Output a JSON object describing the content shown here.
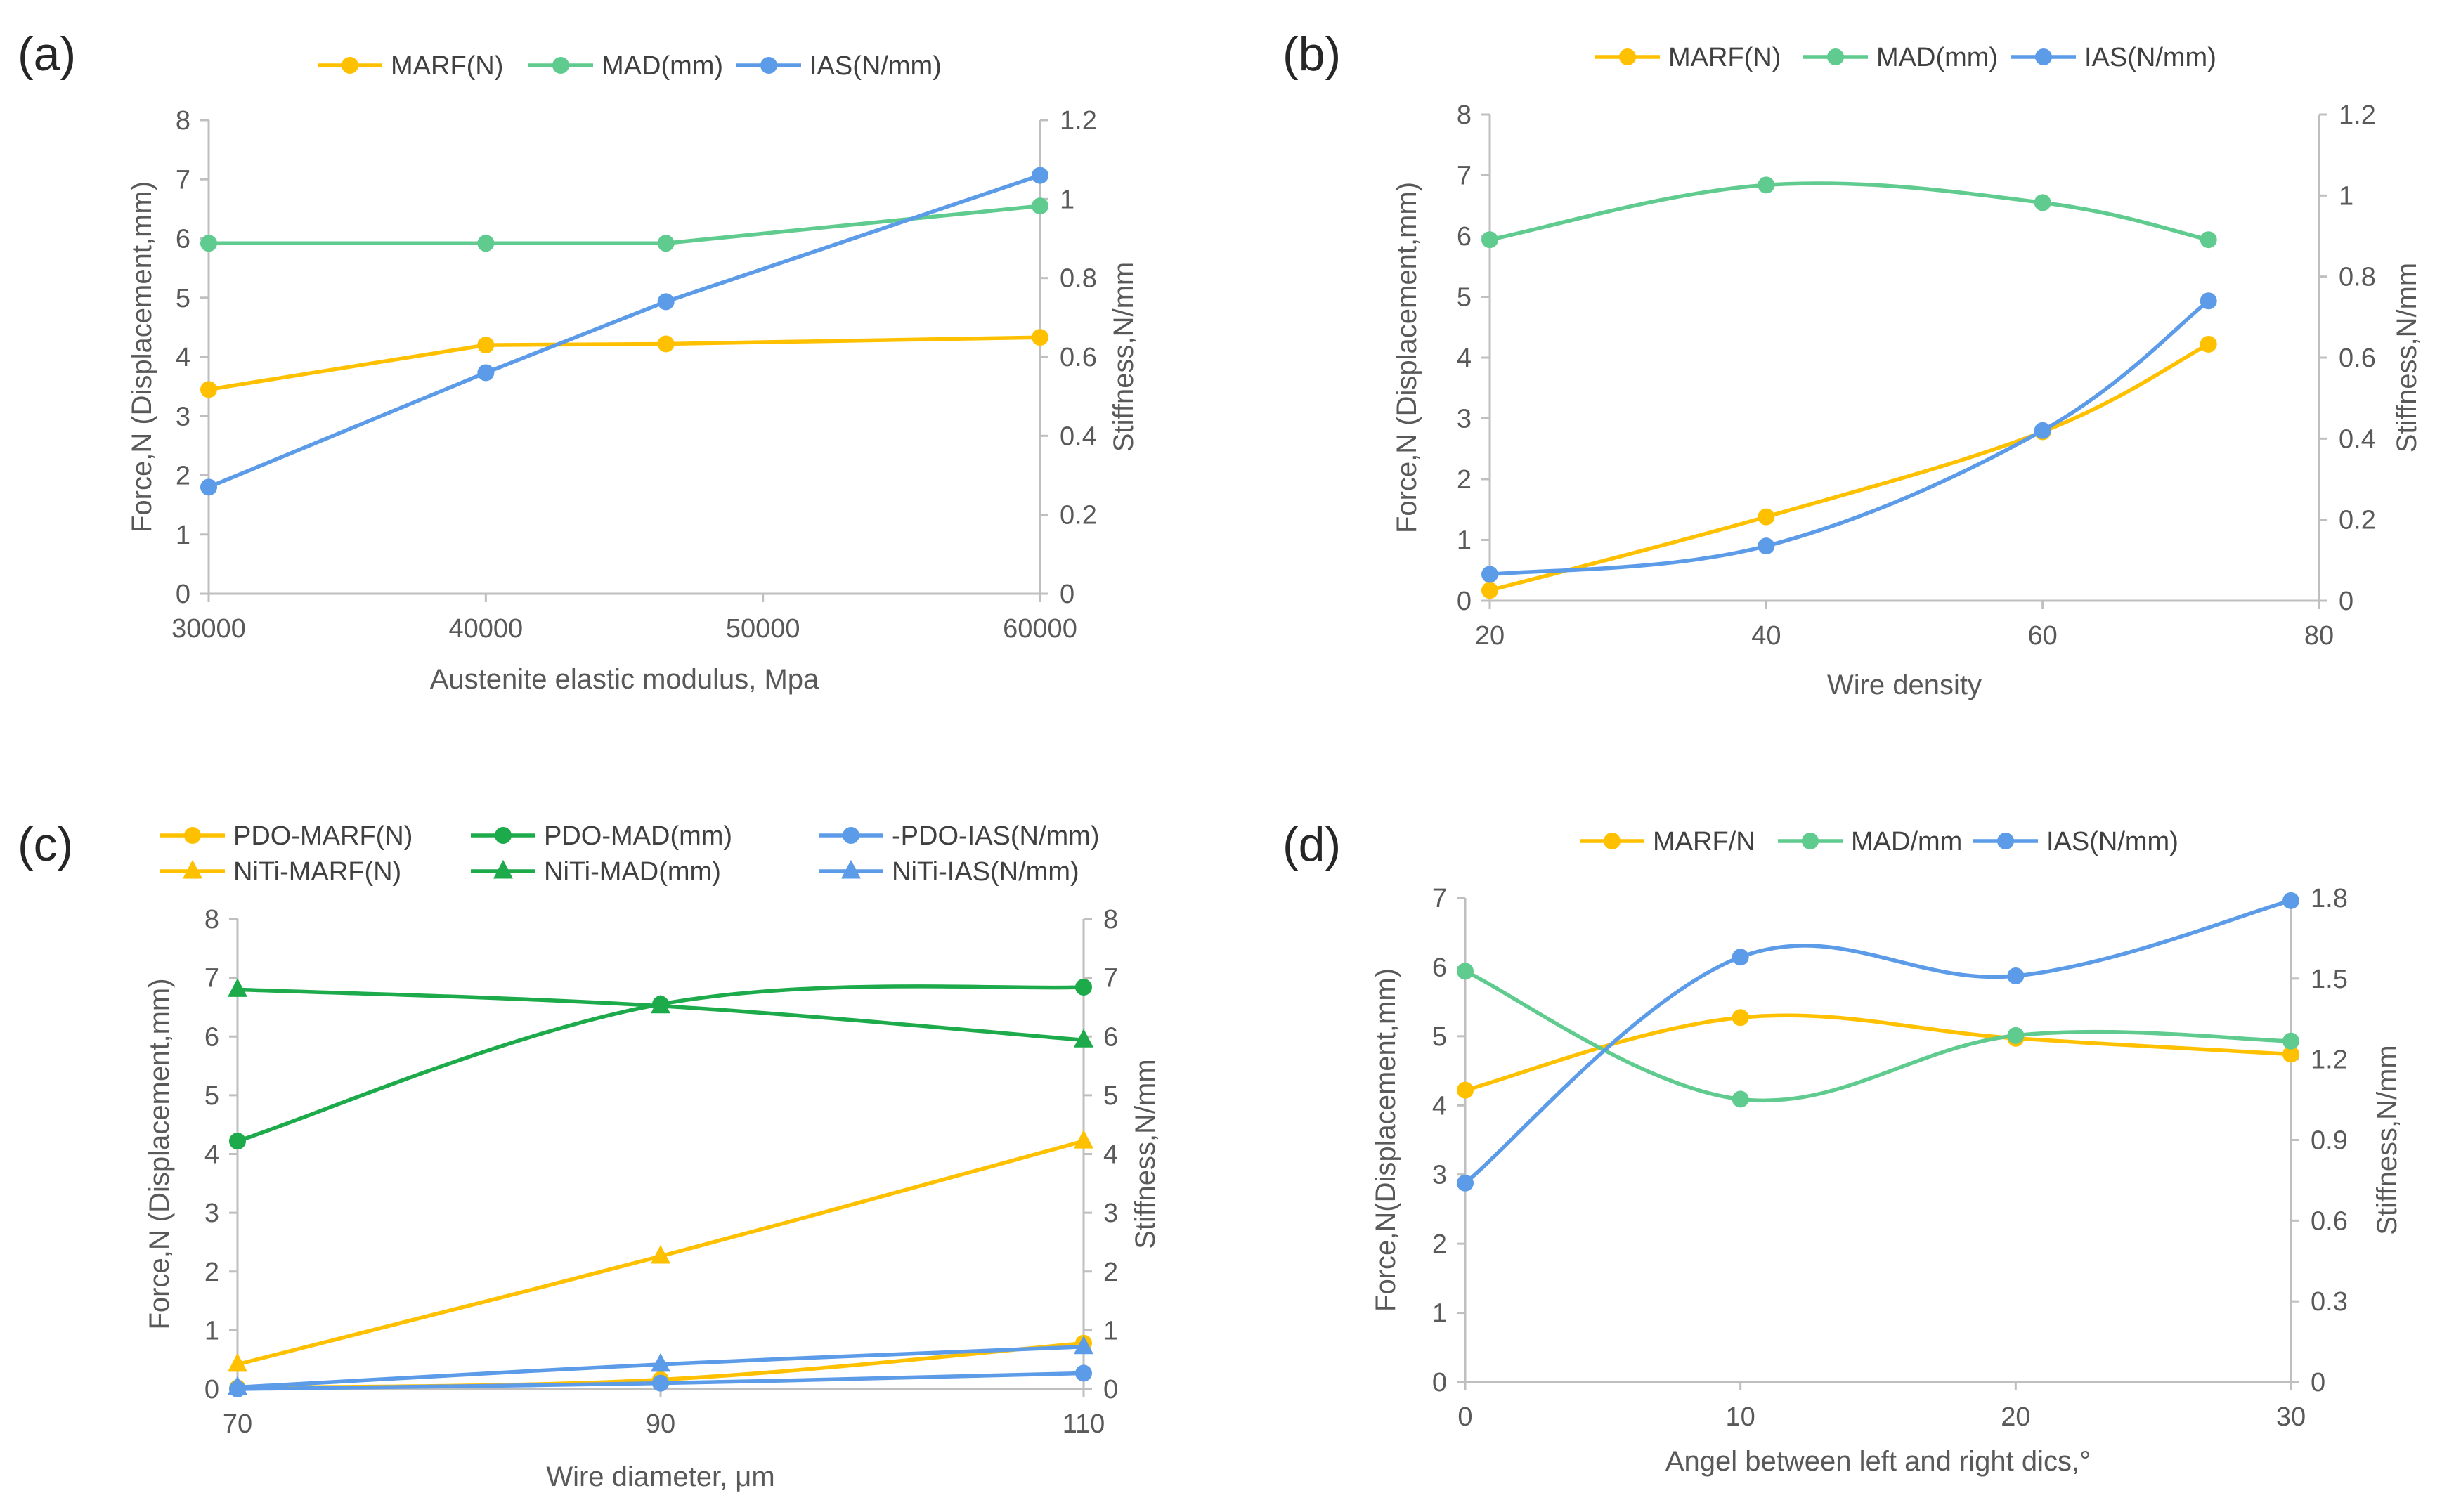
{
  "colors": {
    "marf": "#FFC000",
    "mad": "#5FCB8E",
    "ias": "#5B9BE8",
    "madDark": "#1DAA4A",
    "axis": "#BFBFBF",
    "text": "#595959"
  },
  "chart_data": [
    {
      "panel_label": "(a)",
      "type": "line",
      "smooth": false,
      "xlabel": "Austenite elastic modulus, Mpa",
      "ylabel": "Force,N  (Displacement,mm)",
      "y2label": "Stiffness,N/mm",
      "xlim": [
        30000,
        60000
      ],
      "ylim": [
        0,
        8
      ],
      "y2lim": [
        0,
        1.2
      ],
      "xticks": [
        30000,
        40000,
        50000,
        60000
      ],
      "xtick_labels": [
        "30000",
        "40000",
        "50000",
        "60000"
      ],
      "yticks": [
        0,
        1,
        2,
        3,
        4,
        5,
        6,
        7,
        8
      ],
      "ytick_labels": [
        "0",
        "1",
        "2",
        "3",
        "4",
        "5",
        "6",
        "7",
        "8"
      ],
      "y2ticks": [
        0,
        0.2,
        0.4,
        0.6,
        0.8,
        1,
        1.2
      ],
      "y2tick_labels": [
        "0",
        "0.2",
        "0.4",
        "0.6",
        "0.8",
        "1",
        "1.2"
      ],
      "legend_position": "top",
      "series": [
        {
          "name": "MARF(N)",
          "color": "#FFC000",
          "marker": "circle",
          "axis": "left",
          "x": [
            30000,
            40000,
            46500,
            60000
          ],
          "values": [
            3.45,
            4.2,
            4.22,
            4.33
          ]
        },
        {
          "name": "MAD(mm)",
          "color": "#5FCB8E",
          "marker": "circle",
          "axis": "left",
          "x": [
            30000,
            40000,
            46500,
            60000
          ],
          "values": [
            5.92,
            5.92,
            5.92,
            6.55
          ]
        },
        {
          "name": "IAS(N/mm)",
          "color": "#5B9BE8",
          "marker": "circle",
          "axis": "right",
          "x": [
            30000,
            40000,
            46500,
            60000
          ],
          "values": [
            0.27,
            0.56,
            0.74,
            1.06
          ]
        }
      ]
    },
    {
      "panel_label": "(b)",
      "type": "line",
      "smooth": true,
      "xlabel": "Wire density",
      "ylabel": "Force,N  (Displacement,mm)",
      "y2label": "Stiffness,N/mm",
      "xlim": [
        20,
        80
      ],
      "ylim": [
        0,
        8
      ],
      "y2lim": [
        0,
        1.2
      ],
      "xticks": [
        20,
        40,
        60,
        80
      ],
      "xtick_labels": [
        "20",
        "40",
        "60",
        "80"
      ],
      "yticks": [
        0,
        1,
        2,
        3,
        4,
        5,
        6,
        7,
        8
      ],
      "ytick_labels": [
        "0",
        "1",
        "2",
        "3",
        "4",
        "5",
        "6",
        "7",
        "8"
      ],
      "y2ticks": [
        0,
        0.2,
        0.4,
        0.6,
        0.8,
        1,
        1.2
      ],
      "y2tick_labels": [
        "0",
        "0.2",
        "0.4",
        "0.6",
        "0.8",
        "1",
        "1.2"
      ],
      "legend_position": "top",
      "series": [
        {
          "name": "MARF(N)",
          "color": "#FFC000",
          "marker": "circle",
          "axis": "left",
          "x": [
            20,
            40,
            60,
            72
          ],
          "values": [
            0.17,
            1.38,
            2.78,
            4.22
          ]
        },
        {
          "name": "MAD(mm)",
          "color": "#5FCB8E",
          "marker": "circle",
          "axis": "left",
          "x": [
            20,
            40,
            60,
            72
          ],
          "values": [
            5.94,
            6.84,
            6.55,
            5.94
          ]
        },
        {
          "name": "IAS(N/mm)",
          "color": "#5B9BE8",
          "marker": "circle",
          "axis": "right",
          "x": [
            20,
            40,
            60,
            72
          ],
          "values": [
            0.065,
            0.135,
            0.42,
            0.74
          ]
        }
      ]
    },
    {
      "panel_label": "(c)",
      "type": "line",
      "smooth": true,
      "xlabel": "Wire diameter, μm",
      "ylabel": "Force,N  (Displacement,mm)",
      "y2label": "Stiffness,N/mm",
      "xlim": [
        70,
        110
      ],
      "ylim": [
        0,
        8
      ],
      "y2lim": [
        0,
        8
      ],
      "xticks": [
        70,
        90,
        110
      ],
      "xtick_labels": [
        "70",
        "90",
        "110"
      ],
      "yticks": [
        0,
        1,
        2,
        3,
        4,
        5,
        6,
        7,
        8
      ],
      "ytick_labels": [
        "0",
        "1",
        "2",
        "3",
        "4",
        "5",
        "6",
        "7",
        "8"
      ],
      "y2ticks": [
        0,
        1,
        2,
        3,
        4,
        5,
        6,
        7,
        8
      ],
      "y2tick_labels": [
        "0",
        "1",
        "2",
        "3",
        "4",
        "5",
        "6",
        "7",
        "8"
      ],
      "legend_position": "top",
      "series": [
        {
          "name": "PDO-MARF(N)",
          "color": "#FFC000",
          "marker": "circle",
          "axis": "left",
          "x": [
            70,
            90,
            110
          ],
          "values": [
            0.02,
            0.16,
            0.78
          ]
        },
        {
          "name": "PDO-MAD(mm)",
          "color": "#1DAA4A",
          "marker": "circle",
          "axis": "left",
          "x": [
            70,
            90,
            110
          ],
          "values": [
            4.22,
            6.55,
            6.84
          ]
        },
        {
          "name": "-PDO-IAS(N/mm)",
          "color": "#5B9BE8",
          "marker": "circle",
          "axis": "right",
          "x": [
            70,
            90,
            110
          ],
          "values": [
            0.0,
            0.1,
            0.27
          ]
        },
        {
          "name": "NiTi-MARF(N)",
          "color": "#FFC000",
          "marker": "triangle",
          "axis": "left",
          "x": [
            70,
            90,
            110
          ],
          "values": [
            0.42,
            2.26,
            4.22
          ]
        },
        {
          "name": "NiTi-MAD(mm)",
          "color": "#1DAA4A",
          "marker": "triangle",
          "axis": "left",
          "x": [
            70,
            90,
            110
          ],
          "values": [
            6.8,
            6.52,
            5.94
          ]
        },
        {
          "name": "NiTi-IAS(N/mm)",
          "color": "#5B9BE8",
          "marker": "triangle",
          "axis": "right",
          "x": [
            70,
            90,
            110
          ],
          "values": [
            0.03,
            0.42,
            0.72
          ]
        }
      ]
    },
    {
      "panel_label": "(d)",
      "type": "line",
      "smooth": true,
      "xlabel": "Angel between left and right dics,°",
      "ylabel": "Force,N(Displacement,mm)",
      "y2label": "Stiffness,N/mm",
      "xlim": [
        0,
        30
      ],
      "ylim": [
        0,
        7
      ],
      "y2lim": [
        0,
        1.8
      ],
      "xticks": [
        0,
        10,
        20,
        30
      ],
      "xtick_labels": [
        "0",
        "10",
        "20",
        "30"
      ],
      "yticks": [
        0,
        1,
        2,
        3,
        4,
        5,
        6,
        7
      ],
      "ytick_labels": [
        "0",
        "1",
        "2",
        "3",
        "4",
        "5",
        "6",
        "7"
      ],
      "y2ticks": [
        0,
        0.3,
        0.6,
        0.9,
        1.2,
        1.5,
        1.8
      ],
      "y2tick_labels": [
        "0",
        "0.3",
        "0.6",
        "0.9",
        "1.2",
        "1.5",
        "1.8"
      ],
      "legend_position": "top",
      "series": [
        {
          "name": "MARF/N",
          "color": "#FFC000",
          "marker": "circle",
          "axis": "left",
          "x": [
            0,
            10,
            20,
            30
          ],
          "values": [
            4.22,
            5.27,
            4.97,
            4.74
          ]
        },
        {
          "name": "MAD/mm",
          "color": "#5FCB8E",
          "marker": "circle",
          "axis": "left",
          "x": [
            0,
            10,
            20,
            30
          ],
          "values": [
            5.94,
            4.09,
            5.01,
            4.93
          ]
        },
        {
          "name": "IAS(N/mm)",
          "color": "#5B9BE8",
          "marker": "circle",
          "axis": "right",
          "x": [
            0,
            10,
            20,
            30
          ],
          "values": [
            0.74,
            1.58,
            1.51,
            1.79
          ]
        }
      ]
    }
  ]
}
